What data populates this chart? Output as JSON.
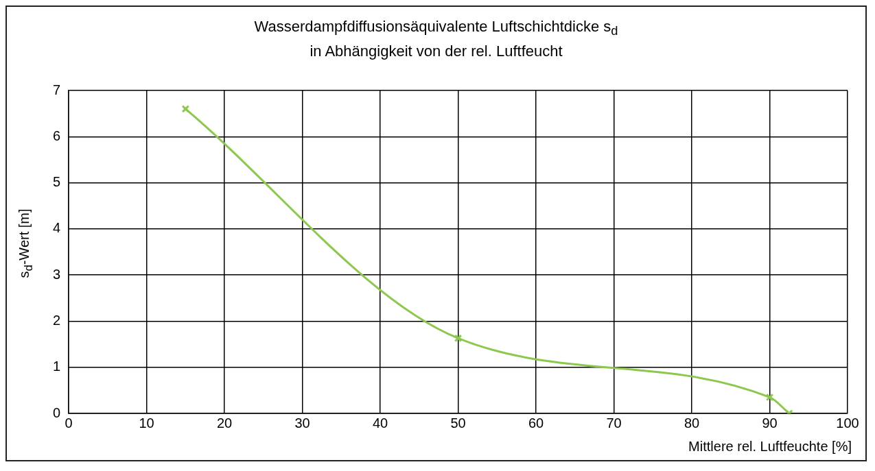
{
  "chart_data": {
    "type": "line",
    "title": "Wasserdampfdiffusionsäquivalente Luftschichtdicke s$_{d}$\nin Abhängigkeit von der rel. Luftfeucht",
    "xlabel": "Mittlere rel. Luftfeuchte [%]",
    "ylabel": "s$_{d}$-Wert [m]",
    "x": [
      15,
      50,
      90,
      92.5
    ],
    "series": [
      {
        "color": "#8cc84b",
        "values": [
          6.6,
          1.63,
          0.35,
          0.0
        ]
      }
    ],
    "xlim": [
      0,
      100
    ],
    "xticks": [
      0,
      10,
      20,
      30,
      40,
      50,
      60,
      70,
      80,
      90,
      100
    ],
    "ylim": [
      0,
      7
    ],
    "yticks": [
      0,
      1,
      2,
      3,
      4,
      5,
      6,
      7
    ],
    "grid": true,
    "legend": false,
    "marker": "cross",
    "line_style": "solid"
  }
}
